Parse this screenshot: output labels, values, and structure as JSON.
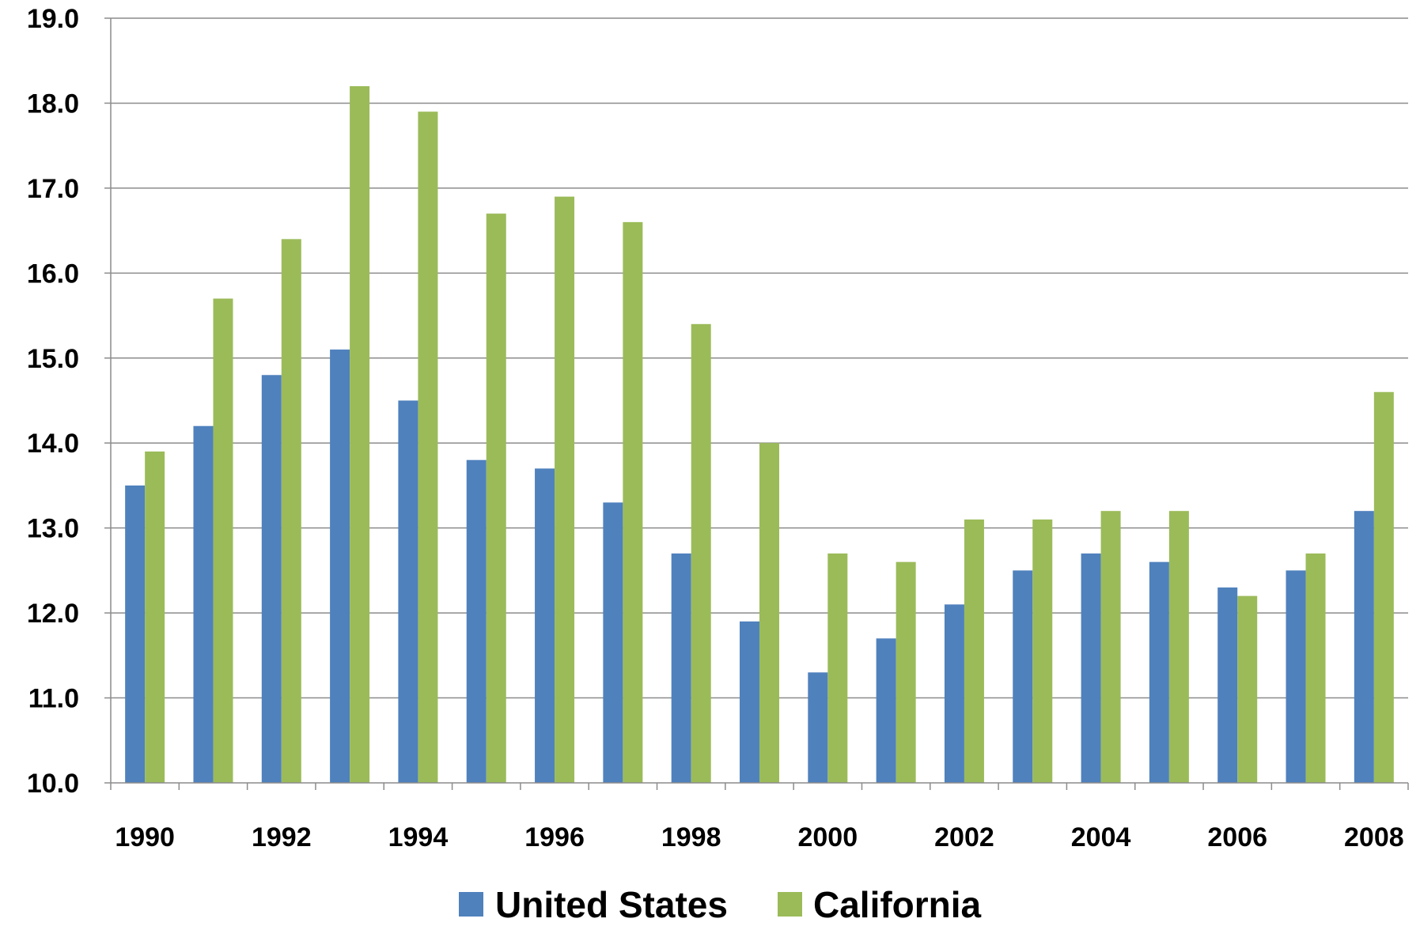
{
  "chart_data": {
    "type": "bar",
    "categories": [
      "1990",
      "1991",
      "1992",
      "1993",
      "1994",
      "1995",
      "1996",
      "1997",
      "1998",
      "1999",
      "2000",
      "2001",
      "2002",
      "2003",
      "2004",
      "2005",
      "2006",
      "2007",
      "2008"
    ],
    "x_tick_labels": [
      "1990",
      "1992",
      "1994",
      "1996",
      "1998",
      "2000",
      "2002",
      "2004",
      "2006",
      "2008"
    ],
    "y_tick_labels": [
      "10.0",
      "11.0",
      "12.0",
      "13.0",
      "14.0",
      "15.0",
      "16.0",
      "17.0",
      "18.0",
      "19.0"
    ],
    "ylim": [
      10,
      19
    ],
    "grid": true,
    "legend_position": "bottom",
    "title": "",
    "xlabel": "",
    "ylabel": "",
    "series": [
      {
        "name": "United States",
        "color": "#4F81BD",
        "values": [
          13.5,
          14.2,
          14.8,
          15.1,
          14.5,
          13.8,
          13.7,
          13.3,
          12.7,
          11.9,
          11.3,
          11.7,
          12.1,
          12.5,
          12.7,
          12.6,
          12.3,
          12.5,
          13.2
        ]
      },
      {
        "name": "California",
        "color": "#9BBB59",
        "values": [
          13.9,
          15.7,
          16.4,
          18.2,
          17.9,
          16.7,
          16.9,
          16.6,
          15.4,
          14.0,
          12.7,
          12.6,
          13.1,
          13.1,
          13.2,
          13.2,
          12.2,
          12.7,
          14.6
        ]
      }
    ]
  }
}
